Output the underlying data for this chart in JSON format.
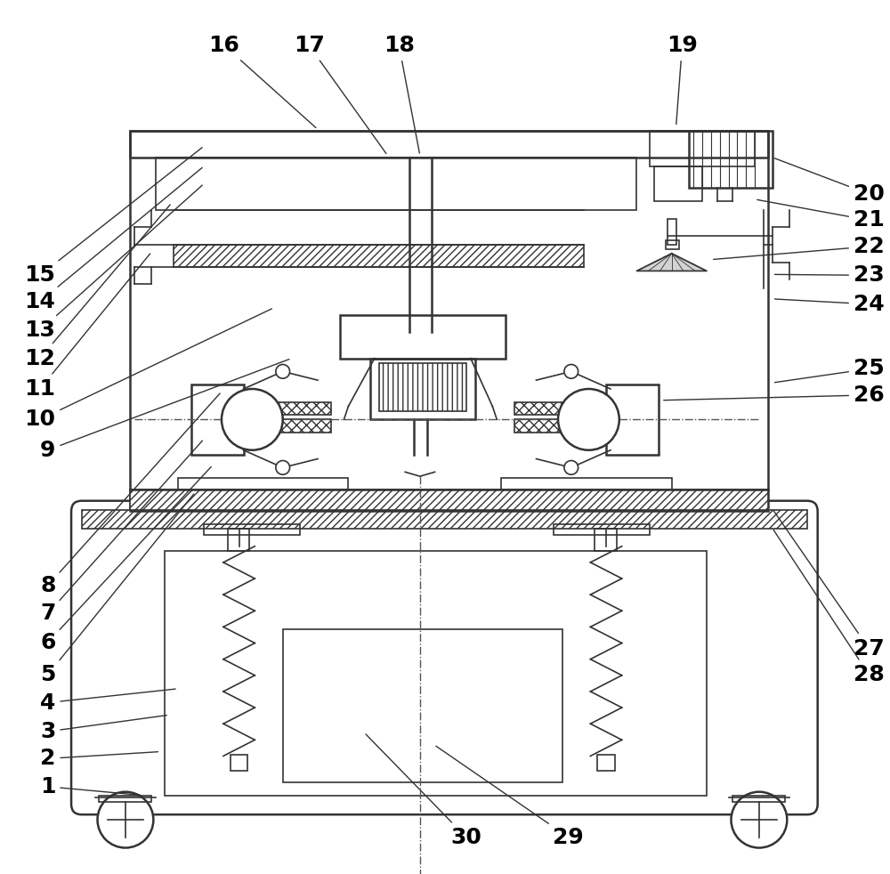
{
  "bg_color": "#ffffff",
  "line_color": "#333333",
  "font_size": 18
}
